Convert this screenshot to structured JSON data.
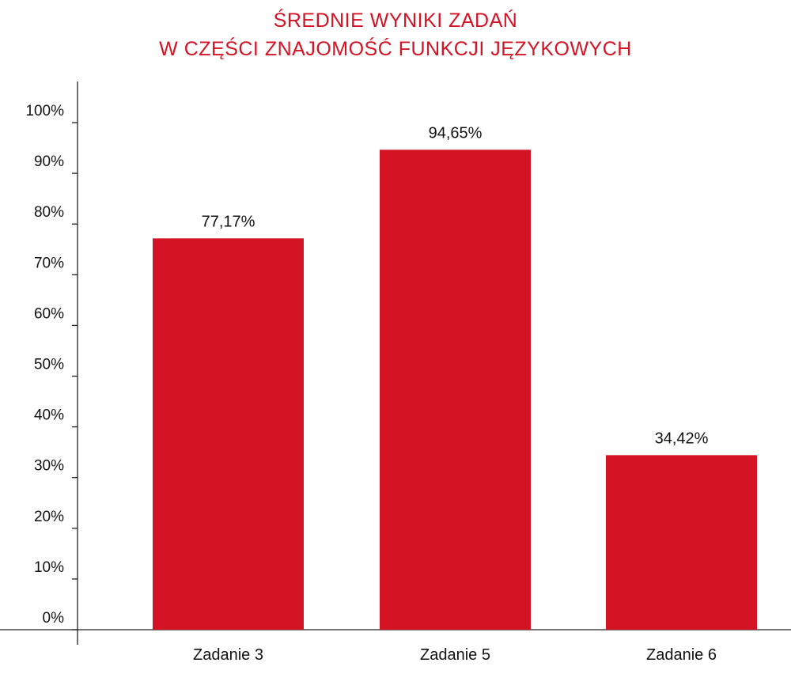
{
  "chart_data": {
    "type": "bar",
    "title": [
      "ŚREDNIE WYNIKI ZADAŃ",
      "W CZĘŚCI ZNAJOMOŚĆ FUNKCJI JĘZYKOWYCH"
    ],
    "categories": [
      "Zadanie 3",
      "Zadanie 5",
      "Zadanie 6"
    ],
    "values": [
      77.17,
      94.65,
      34.42
    ],
    "value_labels": [
      "77,17%",
      "94,65%",
      "34,42%"
    ],
    "y_ticks": [
      0,
      10,
      20,
      30,
      40,
      50,
      60,
      70,
      80,
      90,
      100
    ],
    "y_tick_labels": [
      "0%",
      "10%",
      "20%",
      "30%",
      "40%",
      "50%",
      "60%",
      "70%",
      "80%",
      "90%",
      "100%"
    ],
    "ylim": [
      0,
      100
    ],
    "xlabel": "",
    "ylabel": "",
    "grid": false,
    "bar_color": "#d41324",
    "title_color": "#d41324"
  }
}
